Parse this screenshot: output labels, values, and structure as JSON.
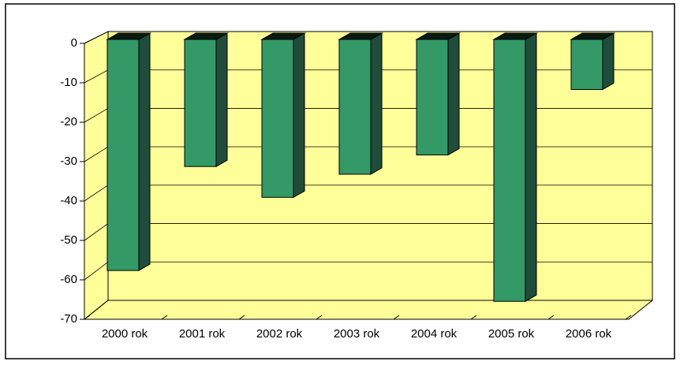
{
  "chart_data": {
    "type": "bar",
    "categories": [
      "2000 rok",
      "2001 rok",
      "2002 rok",
      "2003 rok",
      "2004 rok",
      "2005 rok",
      "2006 rok"
    ],
    "values": [
      -60,
      -33,
      -41,
      -35,
      -30,
      -68,
      -13
    ],
    "color": "#339966",
    "ylim": [
      -70,
      0
    ],
    "yticks": [
      0,
      -10,
      -20,
      -30,
      -40,
      -50,
      -60,
      -70
    ],
    "grid": true
  }
}
